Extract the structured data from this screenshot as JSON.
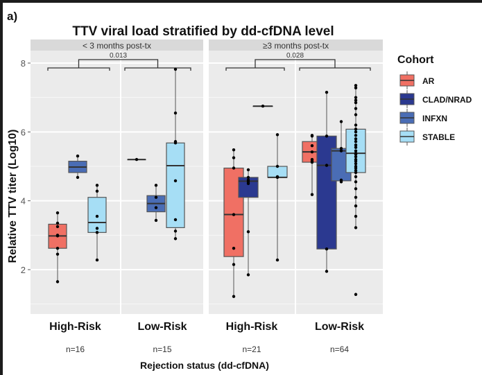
{
  "panel_label": "a)",
  "chart_data": {
    "type": "boxplot",
    "title": "TTV viral load stratified by dd-cfDNA level",
    "xlabel": "Rejection status (dd-cfDNA)",
    "ylabel": "Relative TTV titer (Log10)",
    "ylim": [
      0.9,
      8.6
    ],
    "yticks": [
      2,
      4,
      6,
      8
    ],
    "grid": true,
    "legend": {
      "title": "Cohort",
      "placement": "right",
      "entries": [
        {
          "name": "AR",
          "color": "#f07064"
        },
        {
          "name": "CLAD/NRAD",
          "color": "#2b3990"
        },
        {
          "name": "INFXN",
          "color": "#4a6db5"
        },
        {
          "name": "STABLE",
          "color": "#a6def5"
        }
      ]
    },
    "facets": [
      {
        "strip": "< 3 months post-tx",
        "pvalue": "0.013",
        "groups": [
          {
            "label": "High-Risk",
            "n_label": "n=16",
            "boxes": [
              {
                "cohort": "AR",
                "min": 1.65,
                "q1": 2.62,
                "median": 2.98,
                "q3": 3.32,
                "max": 3.65,
                "points": [
                  1.65,
                  2.45,
                  2.62,
                  2.98,
                  3.0,
                  3.25,
                  3.35,
                  3.65
                ]
              },
              {
                "cohort": "INFXN",
                "min": 4.68,
                "q1": 4.82,
                "median": 4.98,
                "q3": 5.15,
                "max": 5.3,
                "points": [
                  4.68,
                  5.3
                ]
              },
              {
                "cohort": "STABLE",
                "min": 2.28,
                "q1": 3.08,
                "median": 3.37,
                "q3": 4.1,
                "max": 4.45,
                "points": [
                  2.28,
                  3.08,
                  3.2,
                  3.55,
                  4.28,
                  4.45
                ]
              }
            ]
          },
          {
            "label": "Low-Risk",
            "n_label": "n=15",
            "boxes": [
              {
                "cohort": "INFXN",
                "min": 5.2,
                "q1": 5.2,
                "median": 5.2,
                "q3": 5.2,
                "max": 5.2,
                "points": [
                  5.2
                ]
              },
              {
                "cohort": "INFXN",
                "min": 3.43,
                "q1": 3.68,
                "median": 3.92,
                "q3": 4.15,
                "max": 4.45,
                "points": [
                  3.43,
                  3.8,
                  4.1,
                  4.45
                ]
              },
              {
                "cohort": "STABLE",
                "min": 2.9,
                "q1": 3.22,
                "median": 5.02,
                "q3": 5.68,
                "max": 7.82,
                "points": [
                  2.9,
                  3.12,
                  3.45,
                  4.58,
                  5.68,
                  5.72,
                  6.55,
                  7.82
                ]
              }
            ]
          }
        ]
      },
      {
        "strip": "≥3 months post-tx",
        "pvalue": "0.028",
        "groups": [
          {
            "label": "High-Risk",
            "n_label": "n=21",
            "boxes": [
              {
                "cohort": "AR",
                "min": 1.22,
                "q1": 2.38,
                "median": 3.6,
                "q3": 4.95,
                "max": 5.48,
                "points": [
                  1.22,
                  2.15,
                  2.62,
                  3.6,
                  4.95,
                  5.25,
                  5.48
                ]
              },
              {
                "cohort": "CLAD/NRAD",
                "min": 1.85,
                "q1": 4.1,
                "median": 4.57,
                "q3": 4.68,
                "max": 4.9,
                "points": [
                  1.85,
                  3.1,
                  4.5,
                  4.55,
                  4.6,
                  4.68,
                  4.9
                ]
              },
              {
                "cohort": "INFXN",
                "min": 6.75,
                "q1": 6.75,
                "median": 6.75,
                "q3": 6.75,
                "max": 6.75,
                "points": [
                  6.75
                ]
              },
              {
                "cohort": "STABLE",
                "min": 2.28,
                "q1": 4.68,
                "median": 4.68,
                "q3": 5.0,
                "max": 5.92,
                "points": [
                  2.28,
                  4.68,
                  4.7,
                  5.0,
                  5.92
                ]
              }
            ]
          },
          {
            "label": "Low-Risk",
            "n_label": "n=64",
            "boxes": [
              {
                "cohort": "AR",
                "min": 4.18,
                "q1": 5.12,
                "median": 5.42,
                "q3": 5.72,
                "max": 5.9,
                "points": [
                  4.18,
                  5.12,
                  5.15,
                  5.2,
                  5.42,
                  5.6,
                  5.88,
                  5.9
                ]
              },
              {
                "cohort": "CLAD/NRAD",
                "min": 1.95,
                "q1": 2.6,
                "median": 5.03,
                "q3": 5.88,
                "max": 7.15,
                "points": [
                  1.95,
                  2.6,
                  5.03,
                  5.88,
                  7.15
                ]
              },
              {
                "cohort": "INFXN",
                "min": 4.55,
                "q1": 4.58,
                "median": 5.45,
                "q3": 5.52,
                "max": 6.3,
                "points": [
                  4.55,
                  4.6,
                  5.45,
                  5.52,
                  6.3
                ]
              },
              {
                "cohort": "STABLE",
                "min": 3.22,
                "q1": 4.82,
                "median": 5.38,
                "q3": 6.08,
                "max": 7.35,
                "points": [
                  1.28,
                  3.22,
                  3.55,
                  3.85,
                  4.1,
                  4.35,
                  4.55,
                  4.7,
                  4.82,
                  4.88,
                  4.95,
                  5.0,
                  5.08,
                  5.15,
                  5.2,
                  5.28,
                  5.35,
                  5.38,
                  5.45,
                  5.55,
                  5.62,
                  5.72,
                  5.8,
                  5.9,
                  6.0,
                  6.08,
                  6.2,
                  6.5,
                  6.68,
                  6.85,
                  6.92,
                  7.0,
                  7.28,
                  7.35
                ]
              }
            ]
          }
        ]
      }
    ]
  }
}
